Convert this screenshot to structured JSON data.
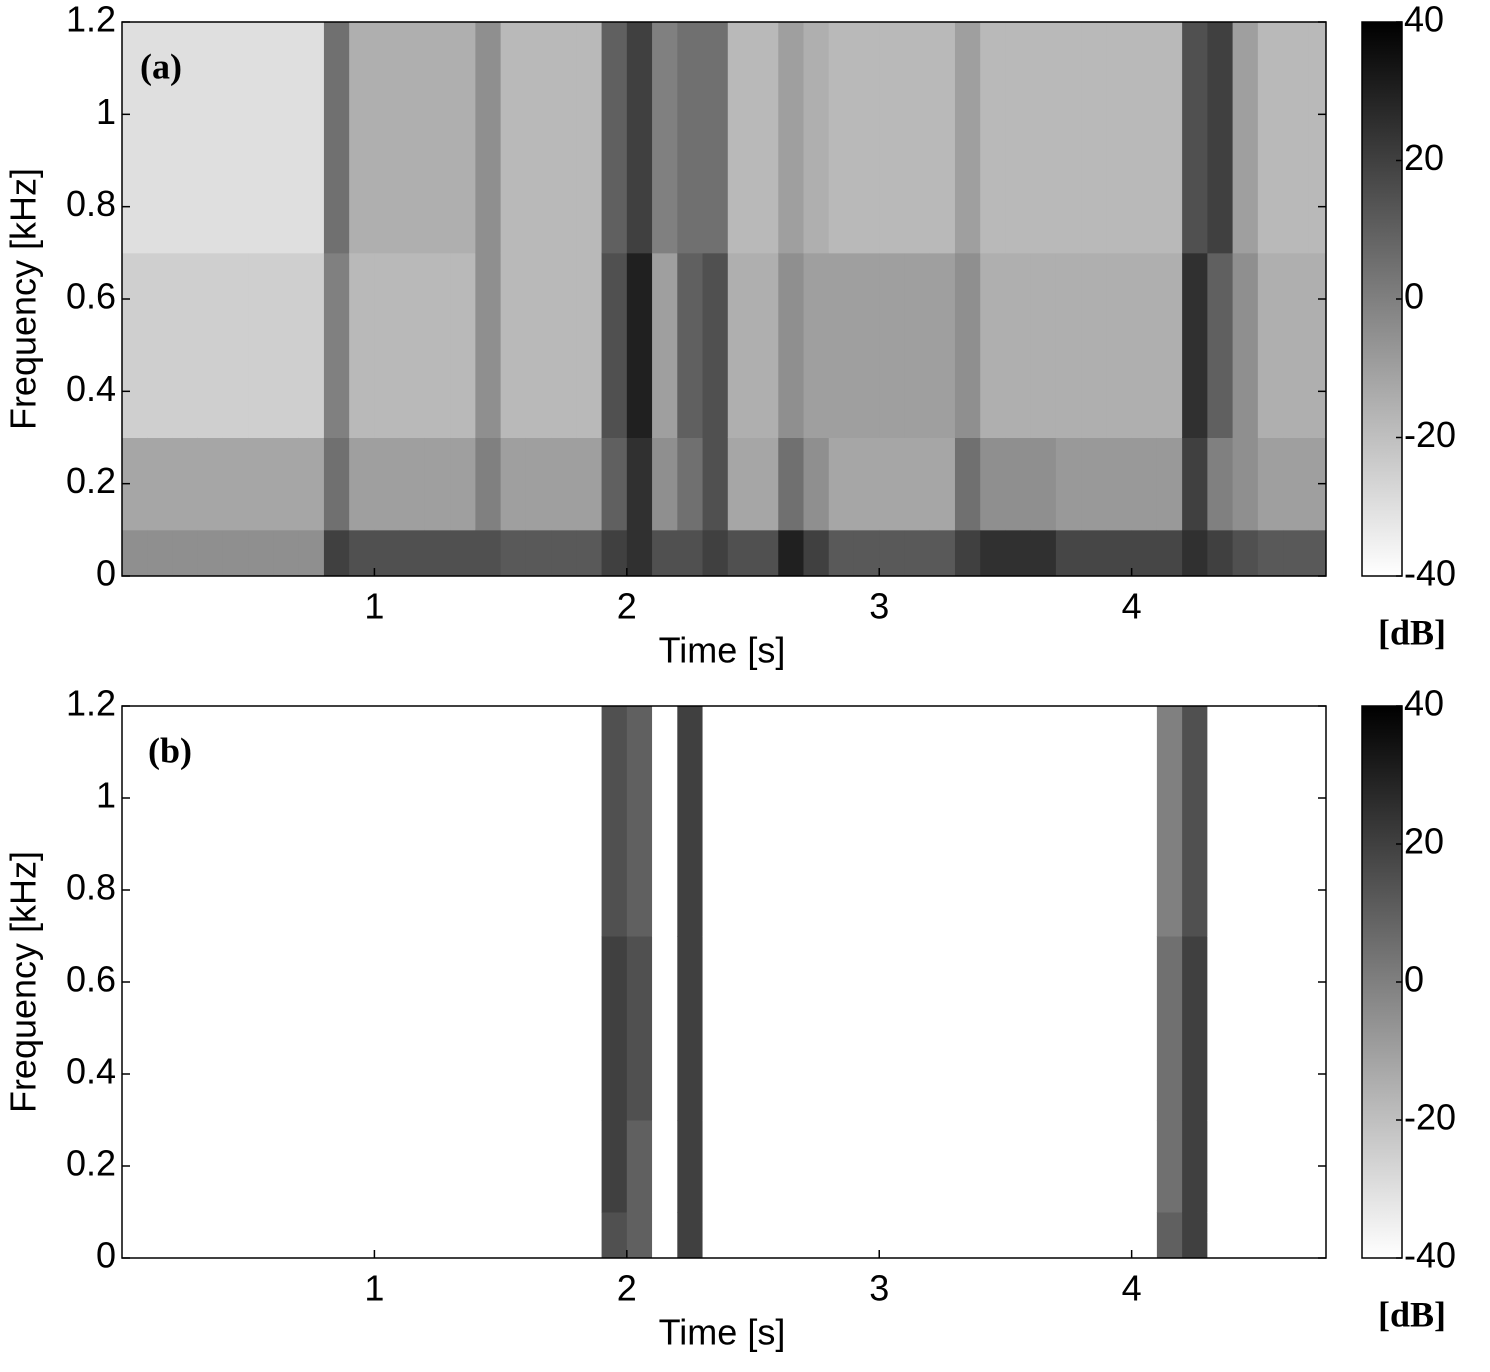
{
  "chart_data": [
    {
      "type": "heatmap",
      "panel_label": "(a)",
      "xlabel": "Time [s]",
      "ylabel": "Frequency [kHz]",
      "colorbar_label": "[dB]",
      "xlim": [
        0,
        4.77
      ],
      "ylim": [
        0,
        1.2
      ],
      "xticks": [
        1,
        2,
        3,
        4
      ],
      "yticks": [
        0,
        0.2,
        0.4,
        0.6,
        0.8,
        1,
        1.2
      ],
      "clim": [
        -40,
        40
      ],
      "cticks": [
        -40,
        -20,
        0,
        20,
        40
      ],
      "colormap": "gray",
      "xbins": [
        0,
        0.1,
        0.2,
        0.3,
        0.4,
        0.5,
        0.6,
        0.7,
        0.8,
        0.9,
        1,
        1.1,
        1.2,
        1.3,
        1.4,
        1.5,
        1.6,
        1.7,
        1.8,
        1.9,
        2,
        2.1,
        2.2,
        2.3,
        2.4,
        2.5,
        2.6,
        2.7,
        2.8,
        2.9,
        3,
        3.1,
        3.2,
        3.3,
        3.4,
        3.5,
        3.6,
        3.7,
        3.8,
        3.9,
        4,
        4.1,
        4.2,
        4.3,
        4.4,
        4.5,
        4.6,
        4.7,
        4.77
      ],
      "ybins": [
        0,
        0.1,
        0.3,
        0.7,
        1.2
      ],
      "values": [
        [
          -5,
          -12,
          -25,
          -30
        ],
        [
          -5,
          -12,
          -25,
          -30
        ],
        [
          -5,
          -12,
          -25,
          -30
        ],
        [
          -5,
          -12,
          -25,
          -30
        ],
        [
          -5,
          -12,
          -25,
          -30
        ],
        [
          -5,
          -12,
          -25,
          -30
        ],
        [
          -5,
          -12,
          -25,
          -30
        ],
        [
          -5,
          -12,
          -25,
          -30
        ],
        [
          20,
          5,
          0,
          5
        ],
        [
          15,
          -10,
          -18,
          -15
        ],
        [
          15,
          -10,
          -18,
          -15
        ],
        [
          15,
          -10,
          -18,
          -15
        ],
        [
          15,
          -10,
          -18,
          -15
        ],
        [
          15,
          -10,
          -18,
          -15
        ],
        [
          15,
          0,
          -5,
          -5
        ],
        [
          12,
          -10,
          -18,
          -18
        ],
        [
          12,
          -10,
          -18,
          -18
        ],
        [
          12,
          -10,
          -18,
          -18
        ],
        [
          12,
          -10,
          -18,
          -18
        ],
        [
          20,
          10,
          15,
          10
        ],
        [
          25,
          25,
          30,
          20
        ],
        [
          15,
          -5,
          -10,
          0
        ],
        [
          15,
          5,
          10,
          5
        ],
        [
          20,
          15,
          15,
          5
        ],
        [
          15,
          -12,
          -15,
          -18
        ],
        [
          15,
          -12,
          -15,
          -18
        ],
        [
          30,
          5,
          -5,
          -10
        ],
        [
          20,
          -5,
          -10,
          -15
        ],
        [
          12,
          -12,
          -10,
          -18
        ],
        [
          12,
          -12,
          -10,
          -18
        ],
        [
          12,
          -12,
          -10,
          -18
        ],
        [
          12,
          -12,
          -10,
          -18
        ],
        [
          12,
          -12,
          -10,
          -18
        ],
        [
          20,
          5,
          -5,
          -10
        ],
        [
          25,
          -5,
          -15,
          -18
        ],
        [
          25,
          -5,
          -15,
          -18
        ],
        [
          25,
          -5,
          -15,
          -18
        ],
        [
          18,
          -8,
          -15,
          -18
        ],
        [
          18,
          -8,
          -15,
          -18
        ],
        [
          18,
          -8,
          -15,
          -18
        ],
        [
          18,
          -8,
          -15,
          -18
        ],
        [
          18,
          -8,
          -15,
          -18
        ],
        [
          25,
          20,
          25,
          15
        ],
        [
          20,
          0,
          10,
          20
        ],
        [
          15,
          -5,
          -5,
          -10
        ],
        [
          12,
          -10,
          -15,
          -18
        ],
        [
          12,
          -10,
          -15,
          -18
        ],
        [
          12,
          -10,
          -15,
          -18
        ]
      ]
    },
    {
      "type": "heatmap",
      "panel_label": "(b)",
      "xlabel": "Time [s]",
      "ylabel": "Frequency [kHz]",
      "colorbar_label": "[dB]",
      "xlim": [
        0,
        4.77
      ],
      "ylim": [
        0,
        1.2
      ],
      "xticks": [
        1,
        2,
        3,
        4
      ],
      "yticks": [
        0,
        0.2,
        0.4,
        0.6,
        0.8,
        1,
        1.2
      ],
      "clim": [
        -40,
        40
      ],
      "cticks": [
        -40,
        -20,
        0,
        20,
        40
      ],
      "colormap": "gray",
      "xbins": [
        0,
        0.1,
        0.2,
        0.3,
        0.4,
        0.5,
        0.6,
        0.7,
        0.8,
        0.9,
        1,
        1.1,
        1.2,
        1.3,
        1.4,
        1.5,
        1.6,
        1.7,
        1.8,
        1.9,
        2,
        2.1,
        2.2,
        2.3,
        2.4,
        2.5,
        2.6,
        2.7,
        2.8,
        2.9,
        3,
        3.1,
        3.2,
        3.3,
        3.4,
        3.5,
        3.6,
        3.7,
        3.8,
        3.9,
        4,
        4.1,
        4.2,
        4.3,
        4.4,
        4.5,
        4.6,
        4.7,
        4.77
      ],
      "ybins": [
        0,
        0.1,
        0.3,
        0.7,
        1.2
      ],
      "values": [
        [
          -40,
          -40,
          -40,
          -40
        ],
        [
          -40,
          -40,
          -40,
          -40
        ],
        [
          -40,
          -40,
          -40,
          -40
        ],
        [
          -40,
          -40,
          -40,
          -40
        ],
        [
          -40,
          -40,
          -40,
          -40
        ],
        [
          -40,
          -40,
          -40,
          -40
        ],
        [
          -40,
          -40,
          -40,
          -40
        ],
        [
          -40,
          -40,
          -40,
          -40
        ],
        [
          -40,
          -40,
          -40,
          -40
        ],
        [
          -40,
          -40,
          -40,
          -40
        ],
        [
          -40,
          -40,
          -40,
          -40
        ],
        [
          -40,
          -40,
          -40,
          -40
        ],
        [
          -40,
          -40,
          -40,
          -40
        ],
        [
          -40,
          -40,
          -40,
          -40
        ],
        [
          -40,
          -40,
          -40,
          -40
        ],
        [
          -40,
          -40,
          -40,
          -40
        ],
        [
          -40,
          -40,
          -40,
          -40
        ],
        [
          -40,
          -40,
          -40,
          -40
        ],
        [
          -40,
          -40,
          -40,
          -40
        ],
        [
          15,
          20,
          20,
          15
        ],
        [
          10,
          10,
          15,
          10
        ],
        [
          -40,
          -40,
          -40,
          -40
        ],
        [
          20,
          20,
          20,
          20
        ],
        [
          -40,
          -40,
          -40,
          -40
        ],
        [
          -40,
          -40,
          -40,
          -40
        ],
        [
          -40,
          -40,
          -40,
          -40
        ],
        [
          -40,
          -40,
          -40,
          -40
        ],
        [
          -40,
          -40,
          -40,
          -40
        ],
        [
          -40,
          -40,
          -40,
          -40
        ],
        [
          -40,
          -40,
          -40,
          -40
        ],
        [
          -40,
          -40,
          -40,
          -40
        ],
        [
          -40,
          -40,
          -40,
          -40
        ],
        [
          -40,
          -40,
          -40,
          -40
        ],
        [
          -40,
          -40,
          -40,
          -40
        ],
        [
          -40,
          -40,
          -40,
          -40
        ],
        [
          -40,
          -40,
          -40,
          -40
        ],
        [
          -40,
          -40,
          -40,
          -40
        ],
        [
          -40,
          -40,
          -40,
          -40
        ],
        [
          -40,
          -40,
          -40,
          -40
        ],
        [
          -40,
          -40,
          -40,
          -40
        ],
        [
          -40,
          -40,
          -40,
          -40
        ],
        [
          10,
          5,
          5,
          0
        ],
        [
          20,
          20,
          20,
          15
        ],
        [
          -40,
          -40,
          -40,
          -40
        ],
        [
          -40,
          -40,
          -40,
          -40
        ],
        [
          -40,
          -40,
          -40,
          -40
        ],
        [
          -40,
          -40,
          -40,
          -40
        ],
        [
          -40,
          -40,
          -40,
          -40
        ]
      ]
    }
  ]
}
